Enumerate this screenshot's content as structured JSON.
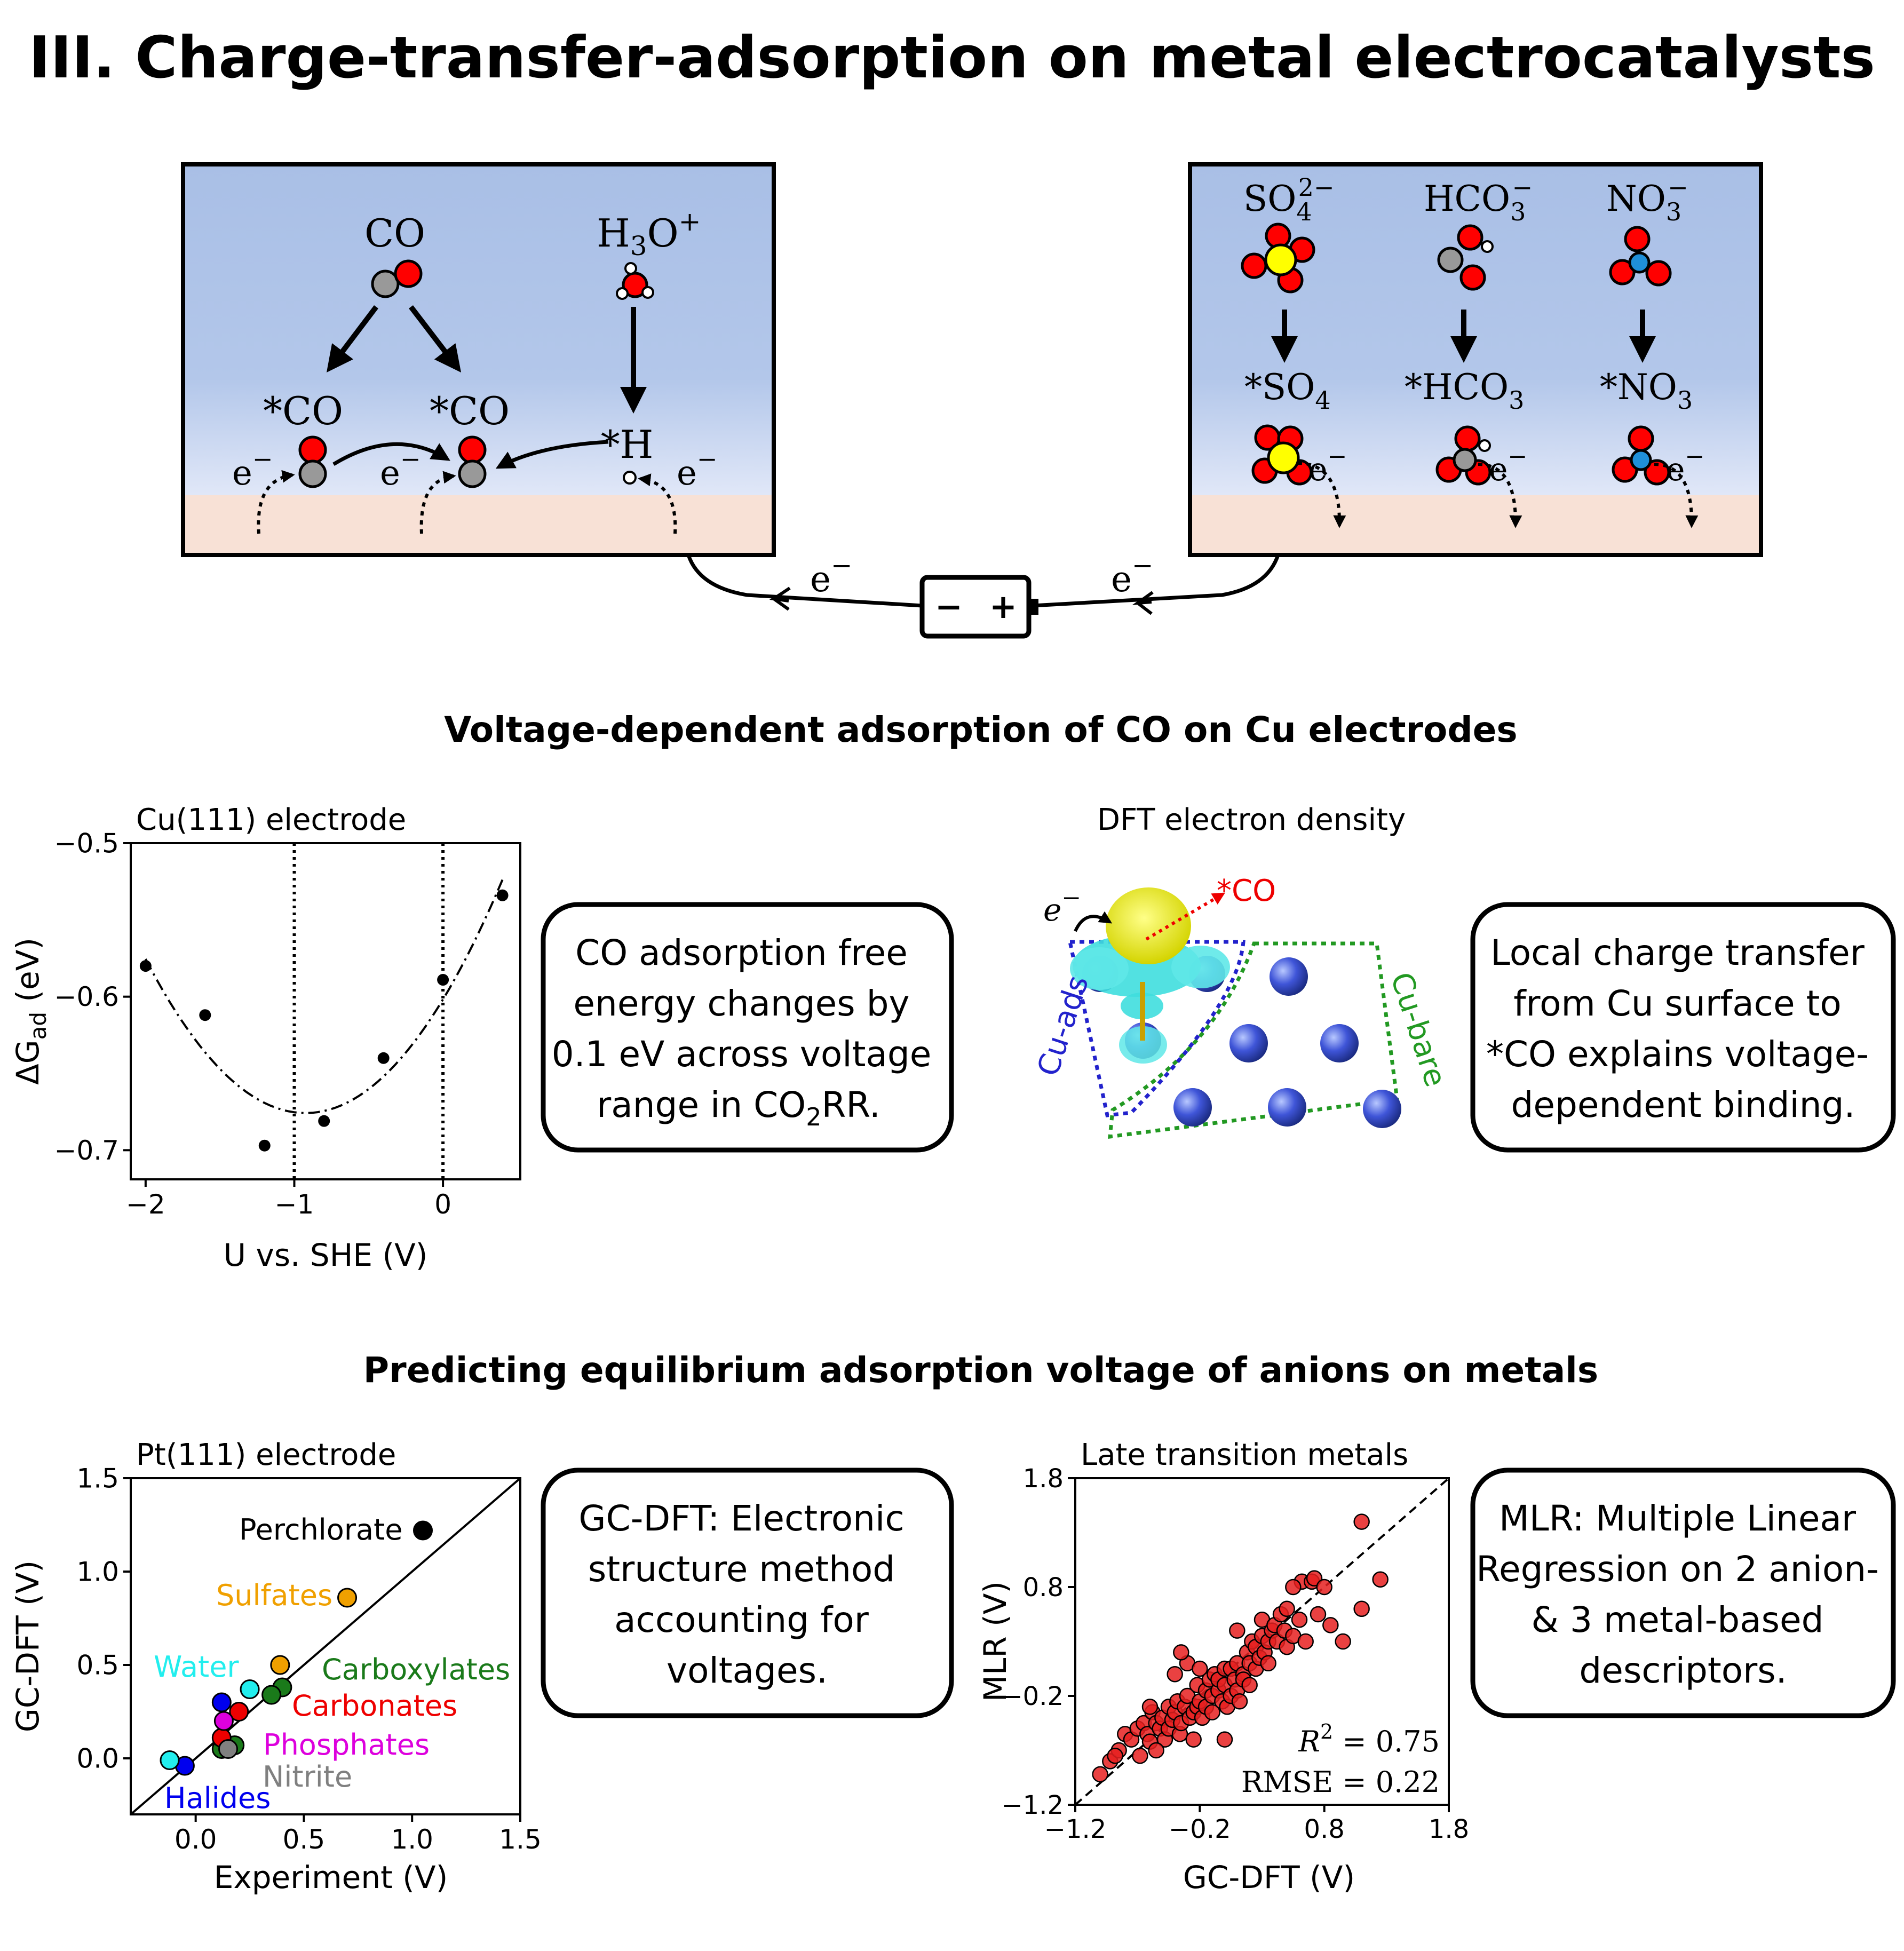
{
  "title": "III. Charge-transfer-adsorption on metal electrocatalysts",
  "schematic": {
    "left": {
      "co_label": "CO",
      "h3o_label": "H",
      "h3o_sub": "3",
      "h3o_tail": "O",
      "h3o_sup": "+",
      "star_co_1": "*CO",
      "star_co_2": "*CO",
      "star_h": "*H",
      "electron": "e",
      "minus": "−"
    },
    "right": {
      "so4": {
        "base": "SO",
        "sub": "4",
        "sup": "2−",
        "ads": "*SO",
        "ads_sub": "4"
      },
      "hco3": {
        "base": "HCO",
        "sub": "3",
        "sup": "−",
        "ads": "*HCO",
        "ads_sub": "3"
      },
      "no3": {
        "base": "NO",
        "sub": "3",
        "sup": "−",
        "ads": "*NO",
        "ads_sub": "3"
      },
      "electron": "e",
      "minus": "−"
    },
    "battery": {
      "neg": "−",
      "pos": "+"
    }
  },
  "section1": {
    "heading": "Voltage-dependent adsorption of CO on Cu electrodes",
    "info_box_1": [
      "CO adsorption free",
      "energy changes by",
      "0.1 eV across voltage",
      "range in CO",
      "2",
      "RR."
    ],
    "info_box_2": [
      "Local charge transfer",
      "from Cu surface to",
      "*CO explains voltage-",
      "dependent binding."
    ],
    "dft": {
      "title": "DFT electron density",
      "electron": "e",
      "minus": "−",
      "co_label": "*CO",
      "cu_ads": "Cu-ads",
      "cu_bare": "Cu-bare"
    }
  },
  "section2": {
    "heading": "Predicting equilibrium adsorption voltage of anions on metals",
    "info_box_3": [
      "GC-DFT: Electronic",
      "structure method",
      "accounting for",
      "voltages."
    ],
    "info_box_4": [
      "MLR: Multiple Linear",
      "Regression on 2 anion-",
      "& 3 metal-based",
      "descriptors."
    ]
  },
  "colors": {
    "oxygen": "#ff0000",
    "carbon": "#999999",
    "sulfur": "#ffff00",
    "nitrogen": "#1f8fd8",
    "hydrogen": "#ffffff",
    "solution_top": "#a9bfe6",
    "electrode": "#f8e1d6",
    "cu_ads_line": "#2222cc",
    "cu_bare_line": "#229922"
  },
  "chart_data": [
    {
      "type": "scatter",
      "title": "Cu(111) electrode",
      "xlabel": "U vs. SHE (V)",
      "ylabel": "ΔG",
      "ylabel_sub": "ad",
      "ylabel_unit": " (eV)",
      "xlim": [
        -2.1,
        0.52
      ],
      "ylim": [
        -0.719,
        -0.5
      ],
      "xticks": [
        -2,
        -1,
        0
      ],
      "xtick_labels": [
        "−2",
        "−1",
        "0"
      ],
      "yticks": [
        -0.5,
        -0.6,
        -0.7
      ],
      "ytick_labels": [
        "−0.5",
        "−0.6",
        "−0.7"
      ],
      "points": [
        {
          "x": -2.0,
          "y": -0.58
        },
        {
          "x": -1.6,
          "y": -0.612
        },
        {
          "x": -1.2,
          "y": -0.697
        },
        {
          "x": -0.8,
          "y": -0.681
        },
        {
          "x": -0.4,
          "y": -0.64
        },
        {
          "x": 0.0,
          "y": -0.589
        },
        {
          "x": 0.4,
          "y": -0.534
        }
      ],
      "fit": {
        "style": "dash-dot",
        "x_range": [
          -2.0,
          0.4
        ]
      },
      "vlines": [
        -1,
        0
      ]
    },
    {
      "type": "scatter",
      "title": "Pt(111) electrode",
      "xlabel": "Experiment (V)",
      "ylabel": "GC-DFT (V)",
      "xlim": [
        -0.3,
        1.5
      ],
      "ylim": [
        -0.3,
        1.5
      ],
      "xticks": [
        0.0,
        0.5,
        1.0,
        1.5
      ],
      "xtick_labels": [
        "0.0",
        "0.5",
        "1.0",
        "1.5"
      ],
      "yticks": [
        0.0,
        0.5,
        1.0,
        1.5
      ],
      "ytick_labels": [
        "0.0",
        "0.5",
        "1.0",
        "1.5"
      ],
      "parity_line": true,
      "series": [
        {
          "name": "Perchlorate",
          "color": "#000000",
          "points": [
            [
              1.05,
              1.22
            ]
          ]
        },
        {
          "name": "Sulfates",
          "color": "#f0a000",
          "points": [
            [
              0.7,
              0.86
            ],
            [
              0.39,
              0.5
            ]
          ]
        },
        {
          "name": "Water",
          "color": "#22eeee",
          "points": [
            [
              0.25,
              0.37
            ]
          ]
        },
        {
          "name": "Carboxylates",
          "color": "#1a7a1a",
          "points": [
            [
              0.4,
              0.38
            ],
            [
              0.35,
              0.34
            ],
            [
              0.18,
              0.07
            ],
            [
              0.12,
              0.05
            ]
          ]
        },
        {
          "name": "Carbonates",
          "color": "#ee0000",
          "points": [
            [
              0.2,
              0.25
            ],
            [
              0.12,
              0.11
            ]
          ]
        },
        {
          "name": "Phosphates",
          "color": "#dd00dd",
          "points": [
            [
              0.13,
              0.2
            ]
          ]
        },
        {
          "name": "Nitrite",
          "color": "#808080",
          "points": [
            [
              0.15,
              0.05
            ]
          ]
        },
        {
          "name": "Halides",
          "color": "#0000ee",
          "points": [
            [
              -0.05,
              -0.04
            ],
            [
              0.12,
              0.3
            ]
          ]
        },
        {
          "name": "Water",
          "color": "#22eeee",
          "points": [
            [
              -0.12,
              -0.01
            ]
          ]
        }
      ]
    },
    {
      "type": "scatter",
      "title": "Late transition metals",
      "xlabel": "GC-DFT (V)",
      "ylabel": "MLR (V)",
      "xlim": [
        -1.2,
        1.8
      ],
      "ylim": [
        -1.2,
        1.8
      ],
      "xticks": [
        -1.2,
        -0.2,
        0.8,
        1.8
      ],
      "xtick_labels": [
        "−1.2",
        "−0.2",
        "0.8",
        "1.8"
      ],
      "yticks": [
        -1.2,
        -0.2,
        0.8,
        1.8
      ],
      "ytick_labels": [
        "−1.2",
        "−0.2",
        "0.8",
        "1.8"
      ],
      "parity_line": true,
      "r2_label": "R",
      "r2_sup": "2",
      "r2_value": " = 0.75",
      "rmse_label": "RMSE = 0.22",
      "points": [
        [
          -1.0,
          -0.92
        ],
        [
          -0.92,
          -0.8
        ],
        [
          -0.85,
          -0.7
        ],
        [
          -0.8,
          -0.55
        ],
        [
          -0.75,
          -0.6
        ],
        [
          -0.7,
          -0.5
        ],
        [
          -0.68,
          -0.75
        ],
        [
          -0.65,
          -0.45
        ],
        [
          -0.62,
          -0.55
        ],
        [
          -0.6,
          -0.62
        ],
        [
          -0.58,
          -0.35
        ],
        [
          -0.55,
          -0.45
        ],
        [
          -0.52,
          -0.5
        ],
        [
          -0.5,
          -0.4
        ],
        [
          -0.48,
          -0.6
        ],
        [
          -0.45,
          -0.3
        ],
        [
          -0.45,
          -0.5
        ],
        [
          -0.42,
          -0.42
        ],
        [
          -0.4,
          -0.35
        ],
        [
          -0.38,
          -0.25
        ],
        [
          -0.36,
          -0.55
        ],
        [
          -0.35,
          -0.45
        ],
        [
          -0.32,
          -0.3
        ],
        [
          -0.3,
          -0.2
        ],
        [
          -0.3,
          0.1
        ],
        [
          -0.28,
          -0.4
        ],
        [
          -0.25,
          -0.35
        ],
        [
          -0.22,
          -0.1
        ],
        [
          -0.22,
          -0.3
        ],
        [
          -0.2,
          -0.25
        ],
        [
          -0.2,
          0.05
        ],
        [
          -0.18,
          -0.4
        ],
        [
          -0.15,
          -0.15
        ],
        [
          -0.15,
          -0.3
        ],
        [
          -0.12,
          -0.05
        ],
        [
          -0.1,
          -0.2
        ],
        [
          -0.1,
          -0.35
        ],
        [
          -0.08,
          0.0
        ],
        [
          -0.05,
          -0.15
        ],
        [
          -0.05,
          -0.05
        ],
        [
          -0.02,
          -0.25
        ],
        [
          0.0,
          0.05
        ],
        [
          0.0,
          -0.1
        ],
        [
          0.02,
          -0.3
        ],
        [
          0.05,
          -0.2
        ],
        [
          0.05,
          0.05
        ],
        [
          0.08,
          -0.05
        ],
        [
          0.1,
          0.1
        ],
        [
          0.1,
          -0.15
        ],
        [
          0.12,
          -0.25
        ],
        [
          0.15,
          0.0
        ],
        [
          0.15,
          -0.05
        ],
        [
          0.18,
          0.2
        ],
        [
          0.2,
          0.1
        ],
        [
          0.2,
          -0.1
        ],
        [
          0.22,
          0.3
        ],
        [
          0.25,
          0.25
        ],
        [
          0.25,
          0.05
        ],
        [
          0.28,
          0.15
        ],
        [
          0.3,
          0.35
        ],
        [
          0.3,
          0.5
        ],
        [
          0.32,
          0.2
        ],
        [
          0.35,
          0.3
        ],
        [
          0.35,
          0.1
        ],
        [
          0.38,
          0.4
        ],
        [
          0.4,
          0.45
        ],
        [
          0.42,
          0.3
        ],
        [
          0.45,
          0.55
        ],
        [
          0.48,
          0.4
        ],
        [
          0.5,
          0.25
        ],
        [
          0.5,
          0.6
        ],
        [
          0.55,
          0.35
        ],
        [
          0.6,
          0.5
        ],
        [
          0.62,
          0.85
        ],
        [
          0.65,
          0.3
        ],
        [
          0.7,
          0.85
        ],
        [
          0.72,
          0.88
        ],
        [
          0.75,
          0.55
        ],
        [
          0.8,
          0.8
        ],
        [
          0.85,
          0.45
        ],
        [
          0.95,
          0.3
        ],
        [
          0.55,
          0.8
        ],
        [
          0.0,
          -0.6
        ],
        [
          -0.35,
          0.2
        ],
        [
          -0.6,
          -0.3
        ],
        [
          1.1,
          1.4
        ],
        [
          1.1,
          0.6
        ],
        [
          1.25,
          0.87
        ],
        [
          -0.88,
          -0.75
        ],
        [
          -0.55,
          -0.7
        ],
        [
          -0.25,
          -0.6
        ],
        [
          0.1,
          0.4
        ],
        [
          -0.4,
          0.0
        ]
      ]
    }
  ]
}
